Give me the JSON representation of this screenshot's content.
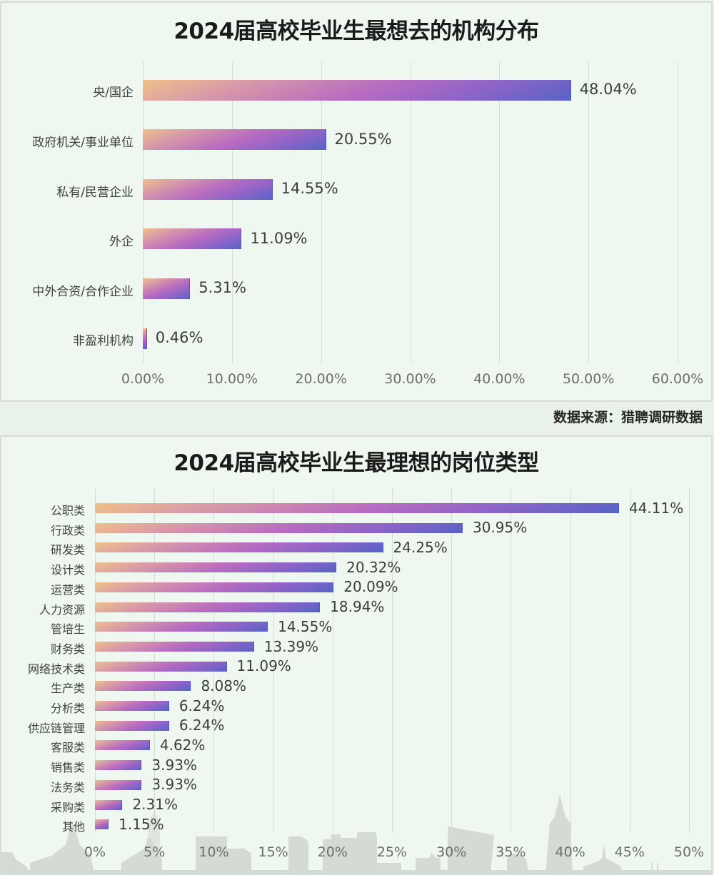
{
  "source_note": "数据来源：猎聘调研数据",
  "colors": {
    "background": "#eef7f0",
    "bar_gradient": [
      "#efc08a",
      "#b86cc0",
      "#5763c6"
    ],
    "gridline": "#d3dcd5",
    "text": "#3a3f3c",
    "skyline": "#d2d9d3"
  },
  "chart_data": [
    {
      "type": "bar",
      "orientation": "horizontal",
      "title": "2024届高校毕业生最想去的机构分布",
      "xlabel": "",
      "ylabel": "",
      "categories": [
        "央/国企",
        "政府机关/事业单位",
        "私有/民营企业",
        "外企",
        "中外合资/合作企业",
        "非盈利机构"
      ],
      "values": [
        48.04,
        20.55,
        14.55,
        11.09,
        5.31,
        0.46
      ],
      "value_labels": [
        "48.04%",
        "20.55%",
        "14.55%",
        "11.09%",
        "5.31%",
        "0.46%"
      ],
      "xlim": [
        0,
        60
      ],
      "x_ticks": [
        "0.00%",
        "10.00%",
        "20.00%",
        "30.00%",
        "40.00%",
        "50.00%",
        "60.00%"
      ],
      "grid": "vertical",
      "legend": "none"
    },
    {
      "type": "bar",
      "orientation": "horizontal",
      "title": "2024届高校毕业生最理想的岗位类型",
      "xlabel": "",
      "ylabel": "",
      "categories": [
        "公职类",
        "行政类",
        "研发类",
        "设计类",
        "运营类",
        "人力资源",
        "管培生",
        "财务类",
        "网络技术类",
        "生产类",
        "分析类",
        "供应链管理",
        "客服类",
        "销售类",
        "法务类",
        "采购类",
        "其他"
      ],
      "values": [
        44.11,
        30.95,
        24.25,
        20.32,
        20.09,
        18.94,
        14.55,
        13.39,
        11.09,
        8.08,
        6.24,
        6.24,
        4.62,
        3.93,
        3.93,
        2.31,
        1.15
      ],
      "value_labels": [
        "44.11%",
        "30.95%",
        "24.25%",
        "20.32%",
        "20.09%",
        "18.94%",
        "14.55%",
        "13.39%",
        "11.09%",
        "8.08%",
        "6.24%",
        "6.24%",
        "4.62%",
        "3.93%",
        "3.93%",
        "2.31%",
        "1.15%"
      ],
      "xlim": [
        0,
        50
      ],
      "x_ticks": [
        "0%",
        "5%",
        "10%",
        "15%",
        "20%",
        "25%",
        "30%",
        "35%",
        "40%",
        "45%",
        "50%"
      ],
      "grid": "vertical",
      "legend": "none"
    }
  ]
}
